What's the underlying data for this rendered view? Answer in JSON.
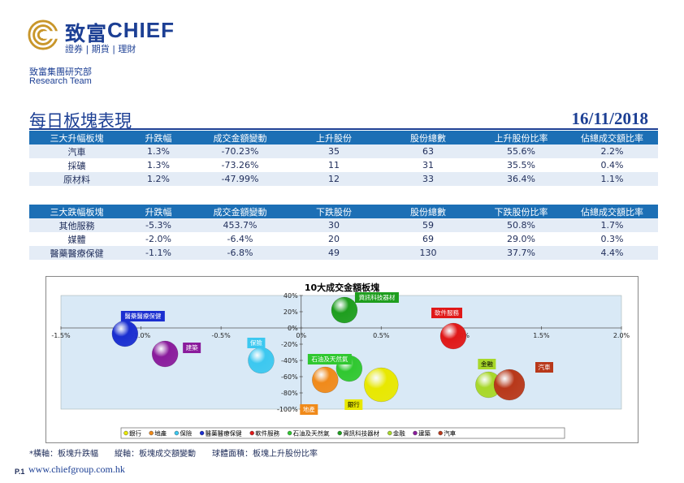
{
  "header": {
    "brand_cn": "致富",
    "brand_en": "CHIEF",
    "brand_tagline": "證券 | 期貨 | 理財",
    "dept_cn": "致富集團研究部",
    "dept_en": "Research Team",
    "logo_color": "#c8962a"
  },
  "report": {
    "title": "每日板塊表現",
    "date": "16/11/2018"
  },
  "top_gainers": {
    "headers": [
      "三大升幅板塊",
      "升跌幅",
      "成交金額變動",
      "上升股份",
      "股份總數",
      "上升股份比率",
      "佔總成交額比率"
    ],
    "rows": [
      [
        "汽車",
        "1.3%",
        "-70.23%",
        "35",
        "63",
        "55.6%",
        "2.2%"
      ],
      [
        "採礦",
        "1.3%",
        "-73.26%",
        "11",
        "31",
        "35.5%",
        "0.4%"
      ],
      [
        "原材料",
        "1.2%",
        "-47.99%",
        "12",
        "33",
        "36.4%",
        "1.1%"
      ]
    ]
  },
  "top_losers": {
    "headers": [
      "三大跌幅板塊",
      "升跌幅",
      "成交金額變動",
      "下跌股份",
      "股份總數",
      "下跌股份比率",
      "佔總成交額比率"
    ],
    "rows": [
      [
        "其他服務",
        "-5.3%",
        "453.7%",
        "30",
        "59",
        "50.8%",
        "1.7%"
      ],
      [
        "媒體",
        "-2.0%",
        "-6.4%",
        "20",
        "69",
        "29.0%",
        "0.3%"
      ],
      [
        "醫藥醫療保健",
        "-1.1%",
        "-6.8%",
        "49",
        "130",
        "37.7%",
        "4.4%"
      ]
    ]
  },
  "chart_data": {
    "type": "scatter",
    "title": "10大成交金額板塊",
    "xlim": [
      -1.5,
      2.0
    ],
    "ylim": [
      -100,
      40
    ],
    "x_ticks": [
      "-1.5%",
      "-1.0%",
      "-0.5%",
      "0%",
      "0.5%",
      "1.0%",
      "1.5%",
      "2.0%"
    ],
    "y_ticks": [
      "40%",
      "20%",
      "0%",
      "-20%",
      "-40%",
      "-60%",
      "-80%",
      "-100%"
    ],
    "legend_position": "bottom",
    "series": [
      {
        "name": "銀行",
        "x": 0.5,
        "y": -70,
        "color": "#e8e800"
      },
      {
        "name": "地產",
        "x": 0.15,
        "y": -64,
        "color": "#f08a1a"
      },
      {
        "name": "保險",
        "x": -0.25,
        "y": -40,
        "color": "#3cc8f0"
      },
      {
        "name": "醫藥醫療保健",
        "x": -1.1,
        "y": -7,
        "color": "#1a2ed0"
      },
      {
        "name": "軟件服務",
        "x": 0.95,
        "y": -10,
        "color": "#e01818"
      },
      {
        "name": "石油及天然氣",
        "x": 0.3,
        "y": -50,
        "color": "#30c830"
      },
      {
        "name": "資訊科技器材",
        "x": 0.27,
        "y": 22,
        "color": "#1e9e1e"
      },
      {
        "name": "金融",
        "x": 1.17,
        "y": -70,
        "color": "#a8d82a"
      },
      {
        "name": "建築",
        "x": -0.85,
        "y": -32,
        "color": "#8a1c9c"
      },
      {
        "name": "汽車",
        "x": 1.3,
        "y": -70,
        "color": "#b8381a"
      }
    ]
  },
  "footer": {
    "footnote": "*橫軸：板塊升跌幅　　縱軸：板塊成交額變動　　球體面積：板塊上升股份比率",
    "page": "P.1",
    "website": "www.chiefgroup.com.hk"
  }
}
